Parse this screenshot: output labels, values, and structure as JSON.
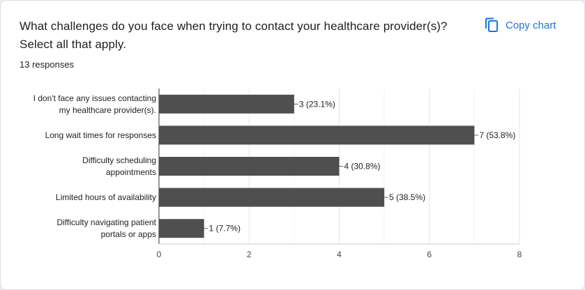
{
  "card": {
    "title": "What challenges do you face when trying to contact your healthcare provider(s)? Select all that apply.",
    "responses": "13 responses",
    "copy_label": "Copy chart",
    "copy_icon": "copy-icon",
    "accent_color": "#1a73e8"
  },
  "chart_data": {
    "type": "bar",
    "orientation": "horizontal",
    "categories": [
      [
        "I don't face any issues contacting",
        "my healthcare provider(s)."
      ],
      [
        "Long wait times for responses"
      ],
      [
        "Difficulty scheduling",
        "appointments"
      ],
      [
        "Limited hours of availability"
      ],
      [
        "Difficulty navigating patient",
        "portals or apps"
      ]
    ],
    "values": [
      3,
      7,
      4,
      5,
      1
    ],
    "data_labels": [
      "3 (23.1%)",
      "7 (53.8%)",
      "4 (30.8%)",
      "5 (38.5%)",
      "1 (7.7%)"
    ],
    "xlim": [
      0,
      8
    ],
    "xticks": [
      0,
      2,
      4,
      6,
      8
    ],
    "bar_color": "#4f4f4f",
    "grid": true
  }
}
